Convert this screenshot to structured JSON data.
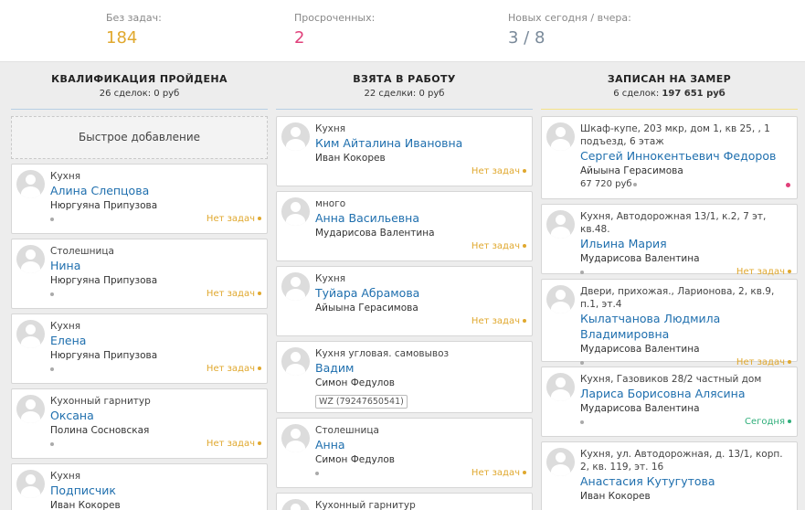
{
  "colors": {
    "accent_yellow": "#e0a82e",
    "accent_pink": "#e0407a",
    "accent_slate": "#7a8a9a",
    "link": "#1f6fae",
    "status_green": "#2fae7a"
  },
  "stats": [
    {
      "label": "Без задач:",
      "value": "184"
    },
    {
      "label": "Просроченных:",
      "value": "2"
    },
    {
      "label": "Новых сегодня / вчера:",
      "value": "3 / 8"
    }
  ],
  "columns": [
    {
      "title": "КВАЛИФИКАЦИЯ ПРОЙДЕНА",
      "summary_prefix": "26 сделок: ",
      "summary_amount": "0 руб",
      "quick_add": "Быстрое добавление",
      "cards": [
        {
          "type": "Кухня",
          "name": "Алина Слепцова",
          "person": "Нюргуяна Припузова",
          "status": "Нет задач"
        },
        {
          "type": "Столешница",
          "name": "Нина",
          "person": "Нюргуяна Припузова",
          "status": "Нет задач"
        },
        {
          "type": "Кухня",
          "name": "Елена",
          "person": "Нюргуяна Припузова",
          "status": "Нет задач"
        },
        {
          "type": "Кухонный гарнитур",
          "name": "Оксана",
          "person": "Полина Сосновская",
          "status": "Нет задач"
        },
        {
          "type": "Кухня",
          "name": "Подписчик",
          "person": "Иван Кокорев",
          "status": ""
        }
      ]
    },
    {
      "title": "ВЗЯТА В РАБОТУ",
      "summary_prefix": "22 сделки: ",
      "summary_amount": "0 руб",
      "cards": [
        {
          "type": "Кухня",
          "name": "Ким Айталина Ивановна",
          "person": "Иван Кокорев",
          "status": "Нет задач"
        },
        {
          "type": "много",
          "name": "Анна Васильевна",
          "person": "Мударисова Валентина",
          "status": "Нет задач"
        },
        {
          "type": "Кухня",
          "name": "Туйара Абрамова",
          "person": "Айыына Герасимова",
          "status": "Нет задач"
        },
        {
          "type": "Кухня угловая. самовывоз",
          "name": "Вадим",
          "person": "Симон Федулов",
          "phone": "WZ (79247650541)",
          "status": ""
        },
        {
          "type": "Столешница",
          "name": "Анна",
          "person": "Симон Федулов",
          "status": "Нет задач"
        },
        {
          "type": "Кухонный гарнитур",
          "name": "",
          "person": "",
          "status": ""
        }
      ]
    },
    {
      "title": "ЗАПИСАН НА ЗАМЕР",
      "summary_prefix": "6 сделок: ",
      "summary_amount": "197 651 руб",
      "cards": [
        {
          "type": "Шкаф-купе, 203 мкр, дом 1, кв 25, , 1 подъезд, 6 этаж",
          "name": "Сергей Иннокентьевич Федоров",
          "person": "Айыына Герасимова",
          "amount": "67 720 руб",
          "status": ""
        },
        {
          "type": "Кухня, Автодорожная 13/1, к.2, 7 эт, кв.48.",
          "name": "Ильина Мария",
          "person": "Мударисова Валентина",
          "status": "Нет задач"
        },
        {
          "type": "Двери, прихожая., Ларионова, 2, кв.9, п.1, эт.4",
          "name": "Кылатчанова Людмила Владимировна",
          "person": "Мударисова Валентина",
          "status": "Нет задач"
        },
        {
          "type": "Кухня, Газовиков 28/2 частный дом",
          "name": "Лариса Борисовна Алясина",
          "person": "Мударисова Валентина",
          "status": "Сегодня"
        },
        {
          "type": "Кухня, ул. Автодорожная, д. 13/1, корп. 2, кв. 119, эт. 16",
          "name": "Анастасия Кутугутова",
          "person": "Иван Кокорев",
          "status": ""
        }
      ]
    }
  ]
}
